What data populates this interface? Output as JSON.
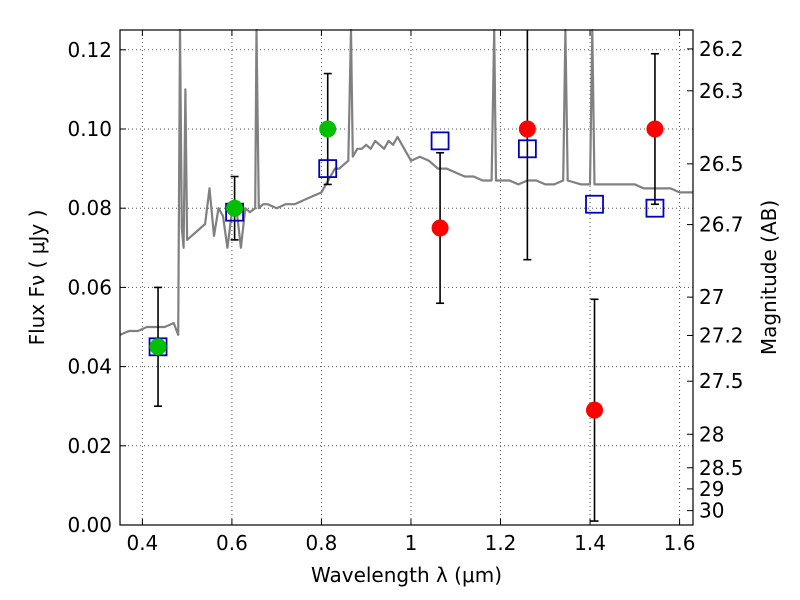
{
  "chart_data": {
    "type": "scatter",
    "xlabel": "Wavelength  λ (μm)",
    "ylabel": "Flux  Fν  ( μJy )",
    "ylabel_right": "Magnitude (AB)",
    "xlim": [
      0.35,
      1.63
    ],
    "ylim": [
      0.0,
      0.125
    ],
    "grid": true,
    "x_ticks": [
      {
        "value": 0.4,
        "label": "0.4"
      },
      {
        "value": 0.6,
        "label": "0.6"
      },
      {
        "value": 0.8,
        "label": "0.8"
      },
      {
        "value": 1.0,
        "label": "1"
      },
      {
        "value": 1.2,
        "label": "1.2"
      },
      {
        "value": 1.4,
        "label": "1.4"
      },
      {
        "value": 1.6,
        "label": "1.6"
      }
    ],
    "y_ticks": [
      {
        "value": 0.0,
        "label": "0.00"
      },
      {
        "value": 0.02,
        "label": "0.02"
      },
      {
        "value": 0.04,
        "label": "0.04"
      },
      {
        "value": 0.06,
        "label": "0.06"
      },
      {
        "value": 0.08,
        "label": "0.08"
      },
      {
        "value": 0.1,
        "label": "0.10"
      },
      {
        "value": 0.12,
        "label": "0.12"
      }
    ],
    "right_ticks": [
      {
        "mag": 26.2,
        "label": "26.2"
      },
      {
        "mag": 26.3,
        "label": "26.3"
      },
      {
        "mag": 26.5,
        "label": "26.5"
      },
      {
        "mag": 26.7,
        "label": "26.7"
      },
      {
        "mag": 27.0,
        "label": "27"
      },
      {
        "mag": 27.2,
        "label": "27.2"
      },
      {
        "mag": 27.5,
        "label": "27.5"
      },
      {
        "mag": 28.0,
        "label": "28"
      },
      {
        "mag": 28.5,
        "label": "28.5"
      },
      {
        "mag": 29.0,
        "label": "29"
      },
      {
        "mag": 30.0,
        "label": "30"
      }
    ],
    "colors": {
      "spectrum": "#808080",
      "detections_green": "#00c000",
      "detections_red": "#ff0000",
      "model": "#0000c0",
      "errorbar": "#000000",
      "grid": "#555555"
    },
    "series": [
      {
        "marker": "circle",
        "color": "#00c000",
        "points": [
          {
            "x": 0.435,
            "y": 0.045,
            "yerr_low": 0.015,
            "yerr_high": 0.015
          },
          {
            "x": 0.606,
            "y": 0.08,
            "yerr_low": 0.008,
            "yerr_high": 0.008
          },
          {
            "x": 0.814,
            "y": 0.1,
            "yerr_low": 0.014,
            "yerr_high": 0.014
          }
        ]
      },
      {
        "marker": "circle",
        "color": "#ff0000",
        "points": [
          {
            "x": 1.065,
            "y": 0.075,
            "yerr_low": 0.019,
            "yerr_high": 0.019
          },
          {
            "x": 1.26,
            "y": 0.1,
            "yerr_low": 0.033,
            "yerr_high": 0.033
          },
          {
            "x": 1.41,
            "y": 0.029,
            "yerr_low": 0.028,
            "yerr_high": 0.028
          },
          {
            "x": 1.545,
            "y": 0.1,
            "yerr_low": 0.019,
            "yerr_high": 0.019
          }
        ]
      },
      {
        "marker": "square",
        "color": "#0000c0",
        "points": [
          {
            "x": 0.435,
            "y": 0.045
          },
          {
            "x": 0.606,
            "y": 0.079
          },
          {
            "x": 0.814,
            "y": 0.09
          },
          {
            "x": 1.065,
            "y": 0.097
          },
          {
            "x": 1.26,
            "y": 0.095
          },
          {
            "x": 1.41,
            "y": 0.081
          },
          {
            "x": 1.545,
            "y": 0.08
          }
        ]
      },
      {
        "type": "line",
        "color": "#808080",
        "points": [
          [
            0.35,
            0.048
          ],
          [
            0.37,
            0.049
          ],
          [
            0.39,
            0.049
          ],
          [
            0.41,
            0.05
          ],
          [
            0.43,
            0.05
          ],
          [
            0.45,
            0.05
          ],
          [
            0.47,
            0.051
          ],
          [
            0.48,
            0.048
          ],
          [
            0.484,
            0.125
          ],
          [
            0.488,
            0.075
          ],
          [
            0.492,
            0.07
          ],
          [
            0.496,
            0.11
          ],
          [
            0.5,
            0.072
          ],
          [
            0.51,
            0.073
          ],
          [
            0.52,
            0.074
          ],
          [
            0.53,
            0.075
          ],
          [
            0.54,
            0.076
          ],
          [
            0.55,
            0.085
          ],
          [
            0.56,
            0.073
          ],
          [
            0.57,
            0.08
          ],
          [
            0.58,
            0.078
          ],
          [
            0.59,
            0.07
          ],
          [
            0.6,
            0.079
          ],
          [
            0.61,
            0.08
          ],
          [
            0.62,
            0.07
          ],
          [
            0.63,
            0.08
          ],
          [
            0.64,
            0.079
          ],
          [
            0.652,
            0.08
          ],
          [
            0.655,
            0.125
          ],
          [
            0.66,
            0.08
          ],
          [
            0.67,
            0.081
          ],
          [
            0.68,
            0.081
          ],
          [
            0.7,
            0.08
          ],
          [
            0.72,
            0.081
          ],
          [
            0.74,
            0.081
          ],
          [
            0.76,
            0.082
          ],
          [
            0.78,
            0.083
          ],
          [
            0.8,
            0.084
          ],
          [
            0.81,
            0.086
          ],
          [
            0.82,
            0.088
          ],
          [
            0.83,
            0.09
          ],
          [
            0.84,
            0.09
          ],
          [
            0.85,
            0.091
          ],
          [
            0.86,
            0.092
          ],
          [
            0.866,
            0.125
          ],
          [
            0.87,
            0.093
          ],
          [
            0.88,
            0.095
          ],
          [
            0.89,
            0.095
          ],
          [
            0.9,
            0.096
          ],
          [
            0.91,
            0.095
          ],
          [
            0.92,
            0.097
          ],
          [
            0.93,
            0.096
          ],
          [
            0.94,
            0.095
          ],
          [
            0.95,
            0.097
          ],
          [
            0.96,
            0.096
          ],
          [
            0.97,
            0.098
          ],
          [
            0.98,
            0.096
          ],
          [
            0.99,
            0.094
          ],
          [
            1.0,
            0.092
          ],
          [
            1.02,
            0.093
          ],
          [
            1.04,
            0.092
          ],
          [
            1.06,
            0.09
          ],
          [
            1.08,
            0.09
          ],
          [
            1.1,
            0.089
          ],
          [
            1.12,
            0.088
          ],
          [
            1.14,
            0.088
          ],
          [
            1.16,
            0.087
          ],
          [
            1.18,
            0.087
          ],
          [
            1.186,
            0.125
          ],
          [
            1.19,
            0.087
          ],
          [
            1.22,
            0.087
          ],
          [
            1.24,
            0.086
          ],
          [
            1.26,
            0.087
          ],
          [
            1.28,
            0.087
          ],
          [
            1.3,
            0.086
          ],
          [
            1.32,
            0.086
          ],
          [
            1.34,
            0.087
          ],
          [
            1.345,
            0.125
          ],
          [
            1.35,
            0.087
          ],
          [
            1.38,
            0.086
          ],
          [
            1.4,
            0.086
          ],
          [
            1.405,
            0.125
          ],
          [
            1.41,
            0.086
          ],
          [
            1.44,
            0.086
          ],
          [
            1.46,
            0.086
          ],
          [
            1.48,
            0.086
          ],
          [
            1.5,
            0.086
          ],
          [
            1.52,
            0.085
          ],
          [
            1.54,
            0.085
          ],
          [
            1.56,
            0.085
          ],
          [
            1.58,
            0.085
          ],
          [
            1.6,
            0.084
          ],
          [
            1.63,
            0.084
          ]
        ]
      }
    ]
  }
}
